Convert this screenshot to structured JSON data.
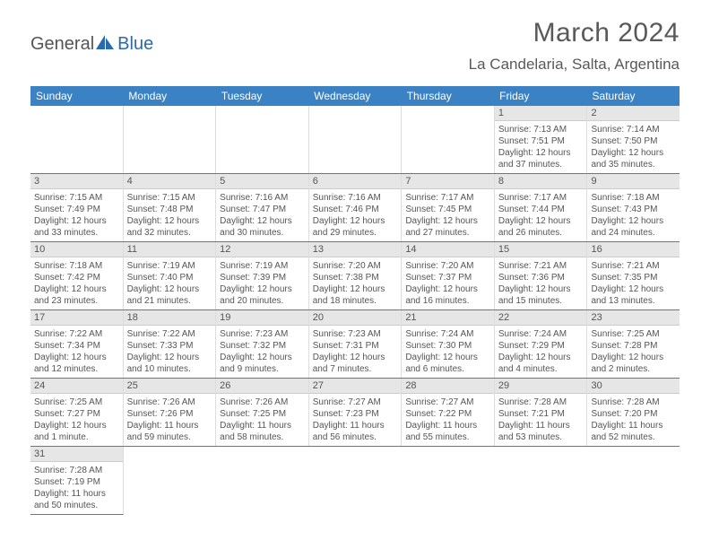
{
  "logo": {
    "text_general": "General",
    "text_blue": "Blue"
  },
  "title": "March 2024",
  "subtitle": "La Candelaria, Salta, Argentina",
  "colors": {
    "header_bg": "#3a82c4",
    "header_text": "#ffffff",
    "daynum_bg": "#e6e6e6",
    "text": "#555555",
    "rule": "#3a82c4"
  },
  "weekdays": [
    "Sunday",
    "Monday",
    "Tuesday",
    "Wednesday",
    "Thursday",
    "Friday",
    "Saturday"
  ],
  "weeks": [
    [
      {
        "blank": true
      },
      {
        "blank": true
      },
      {
        "blank": true
      },
      {
        "blank": true
      },
      {
        "blank": true
      },
      {
        "num": "1",
        "sunrise": "Sunrise: 7:13 AM",
        "sunset": "Sunset: 7:51 PM",
        "daylight": "Daylight: 12 hours and 37 minutes."
      },
      {
        "num": "2",
        "sunrise": "Sunrise: 7:14 AM",
        "sunset": "Sunset: 7:50 PM",
        "daylight": "Daylight: 12 hours and 35 minutes."
      }
    ],
    [
      {
        "num": "3",
        "sunrise": "Sunrise: 7:15 AM",
        "sunset": "Sunset: 7:49 PM",
        "daylight": "Daylight: 12 hours and 33 minutes."
      },
      {
        "num": "4",
        "sunrise": "Sunrise: 7:15 AM",
        "sunset": "Sunset: 7:48 PM",
        "daylight": "Daylight: 12 hours and 32 minutes."
      },
      {
        "num": "5",
        "sunrise": "Sunrise: 7:16 AM",
        "sunset": "Sunset: 7:47 PM",
        "daylight": "Daylight: 12 hours and 30 minutes."
      },
      {
        "num": "6",
        "sunrise": "Sunrise: 7:16 AM",
        "sunset": "Sunset: 7:46 PM",
        "daylight": "Daylight: 12 hours and 29 minutes."
      },
      {
        "num": "7",
        "sunrise": "Sunrise: 7:17 AM",
        "sunset": "Sunset: 7:45 PM",
        "daylight": "Daylight: 12 hours and 27 minutes."
      },
      {
        "num": "8",
        "sunrise": "Sunrise: 7:17 AM",
        "sunset": "Sunset: 7:44 PM",
        "daylight": "Daylight: 12 hours and 26 minutes."
      },
      {
        "num": "9",
        "sunrise": "Sunrise: 7:18 AM",
        "sunset": "Sunset: 7:43 PM",
        "daylight": "Daylight: 12 hours and 24 minutes."
      }
    ],
    [
      {
        "num": "10",
        "sunrise": "Sunrise: 7:18 AM",
        "sunset": "Sunset: 7:42 PM",
        "daylight": "Daylight: 12 hours and 23 minutes."
      },
      {
        "num": "11",
        "sunrise": "Sunrise: 7:19 AM",
        "sunset": "Sunset: 7:40 PM",
        "daylight": "Daylight: 12 hours and 21 minutes."
      },
      {
        "num": "12",
        "sunrise": "Sunrise: 7:19 AM",
        "sunset": "Sunset: 7:39 PM",
        "daylight": "Daylight: 12 hours and 20 minutes."
      },
      {
        "num": "13",
        "sunrise": "Sunrise: 7:20 AM",
        "sunset": "Sunset: 7:38 PM",
        "daylight": "Daylight: 12 hours and 18 minutes."
      },
      {
        "num": "14",
        "sunrise": "Sunrise: 7:20 AM",
        "sunset": "Sunset: 7:37 PM",
        "daylight": "Daylight: 12 hours and 16 minutes."
      },
      {
        "num": "15",
        "sunrise": "Sunrise: 7:21 AM",
        "sunset": "Sunset: 7:36 PM",
        "daylight": "Daylight: 12 hours and 15 minutes."
      },
      {
        "num": "16",
        "sunrise": "Sunrise: 7:21 AM",
        "sunset": "Sunset: 7:35 PM",
        "daylight": "Daylight: 12 hours and 13 minutes."
      }
    ],
    [
      {
        "num": "17",
        "sunrise": "Sunrise: 7:22 AM",
        "sunset": "Sunset: 7:34 PM",
        "daylight": "Daylight: 12 hours and 12 minutes."
      },
      {
        "num": "18",
        "sunrise": "Sunrise: 7:22 AM",
        "sunset": "Sunset: 7:33 PM",
        "daylight": "Daylight: 12 hours and 10 minutes."
      },
      {
        "num": "19",
        "sunrise": "Sunrise: 7:23 AM",
        "sunset": "Sunset: 7:32 PM",
        "daylight": "Daylight: 12 hours and 9 minutes."
      },
      {
        "num": "20",
        "sunrise": "Sunrise: 7:23 AM",
        "sunset": "Sunset: 7:31 PM",
        "daylight": "Daylight: 12 hours and 7 minutes."
      },
      {
        "num": "21",
        "sunrise": "Sunrise: 7:24 AM",
        "sunset": "Sunset: 7:30 PM",
        "daylight": "Daylight: 12 hours and 6 minutes."
      },
      {
        "num": "22",
        "sunrise": "Sunrise: 7:24 AM",
        "sunset": "Sunset: 7:29 PM",
        "daylight": "Daylight: 12 hours and 4 minutes."
      },
      {
        "num": "23",
        "sunrise": "Sunrise: 7:25 AM",
        "sunset": "Sunset: 7:28 PM",
        "daylight": "Daylight: 12 hours and 2 minutes."
      }
    ],
    [
      {
        "num": "24",
        "sunrise": "Sunrise: 7:25 AM",
        "sunset": "Sunset: 7:27 PM",
        "daylight": "Daylight: 12 hours and 1 minute."
      },
      {
        "num": "25",
        "sunrise": "Sunrise: 7:26 AM",
        "sunset": "Sunset: 7:26 PM",
        "daylight": "Daylight: 11 hours and 59 minutes."
      },
      {
        "num": "26",
        "sunrise": "Sunrise: 7:26 AM",
        "sunset": "Sunset: 7:25 PM",
        "daylight": "Daylight: 11 hours and 58 minutes."
      },
      {
        "num": "27",
        "sunrise": "Sunrise: 7:27 AM",
        "sunset": "Sunset: 7:23 PM",
        "daylight": "Daylight: 11 hours and 56 minutes."
      },
      {
        "num": "28",
        "sunrise": "Sunrise: 7:27 AM",
        "sunset": "Sunset: 7:22 PM",
        "daylight": "Daylight: 11 hours and 55 minutes."
      },
      {
        "num": "29",
        "sunrise": "Sunrise: 7:28 AM",
        "sunset": "Sunset: 7:21 PM",
        "daylight": "Daylight: 11 hours and 53 minutes."
      },
      {
        "num": "30",
        "sunrise": "Sunrise: 7:28 AM",
        "sunset": "Sunset: 7:20 PM",
        "daylight": "Daylight: 11 hours and 52 minutes."
      }
    ],
    [
      {
        "num": "31",
        "sunrise": "Sunrise: 7:28 AM",
        "sunset": "Sunset: 7:19 PM",
        "daylight": "Daylight: 11 hours and 50 minutes."
      },
      {
        "blank": true
      },
      {
        "blank": true
      },
      {
        "blank": true
      },
      {
        "blank": true
      },
      {
        "blank": true
      },
      {
        "blank": true
      }
    ]
  ]
}
